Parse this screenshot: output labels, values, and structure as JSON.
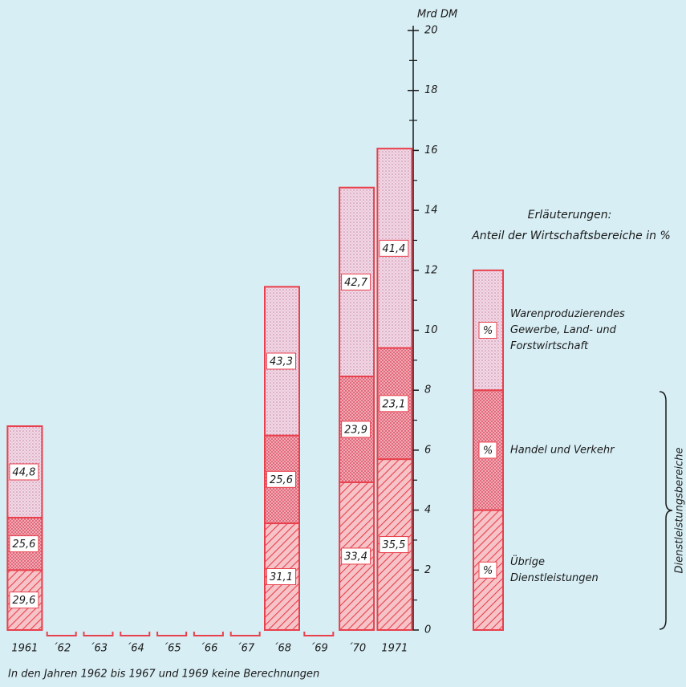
{
  "chart_data": {
    "type": "bar",
    "stacked": true,
    "unit_label": "Mrd DM",
    "footnote": "In den Jahren 1962 bis 1967 und 1969 keine Berechnungen",
    "categories": [
      "1961",
      "´62",
      "´63",
      "´64",
      "´65",
      "´66",
      "´67",
      "´68",
      "´69",
      "´70",
      "1971"
    ],
    "ylim": [
      0,
      20
    ],
    "yticks": [
      0,
      2,
      4,
      6,
      8,
      10,
      12,
      14,
      16,
      18,
      20
    ],
    "yminorticks": [
      1,
      3,
      5,
      7,
      9,
      11,
      13,
      15,
      17,
      19
    ],
    "series": [
      {
        "name": [
          "Übrige",
          "Dienstleistungen"
        ],
        "color": "#e8404c",
        "pattern": "hatch",
        "values": [
          2.0,
          null,
          null,
          null,
          null,
          null,
          null,
          3.56,
          null,
          4.93,
          5.7
        ],
        "share_labels": [
          "29,6",
          null,
          null,
          null,
          null,
          null,
          null,
          "31,1",
          null,
          "33,4",
          "35,5"
        ]
      },
      {
        "name": [
          "Handel und Verkehr"
        ],
        "color": "#e8404c",
        "pattern": "cross",
        "values": [
          1.75,
          null,
          null,
          null,
          null,
          null,
          null,
          2.93,
          null,
          3.53,
          3.71
        ],
        "share_labels": [
          "25,6",
          null,
          null,
          null,
          null,
          null,
          null,
          "25,6",
          null,
          "23,9",
          "23,1"
        ]
      },
      {
        "name": [
          "Warenproduzierendes",
          "Gewerbe, Land- und",
          "Forstwirtschaft"
        ],
        "color": "#e8404c",
        "pattern": "dots",
        "values": [
          3.05,
          null,
          null,
          null,
          null,
          null,
          null,
          4.96,
          null,
          6.3,
          6.65
        ],
        "share_labels": [
          "44,8",
          null,
          null,
          null,
          null,
          null,
          null,
          "43,3",
          null,
          "42,7",
          "41,4"
        ]
      }
    ],
    "legend": {
      "title": "Erläuterungen:",
      "subtitle": "Anteil der Wirtschaftsbereiche in %",
      "symbol": "%",
      "group_label": "Dienstleistungsbereiche"
    }
  }
}
